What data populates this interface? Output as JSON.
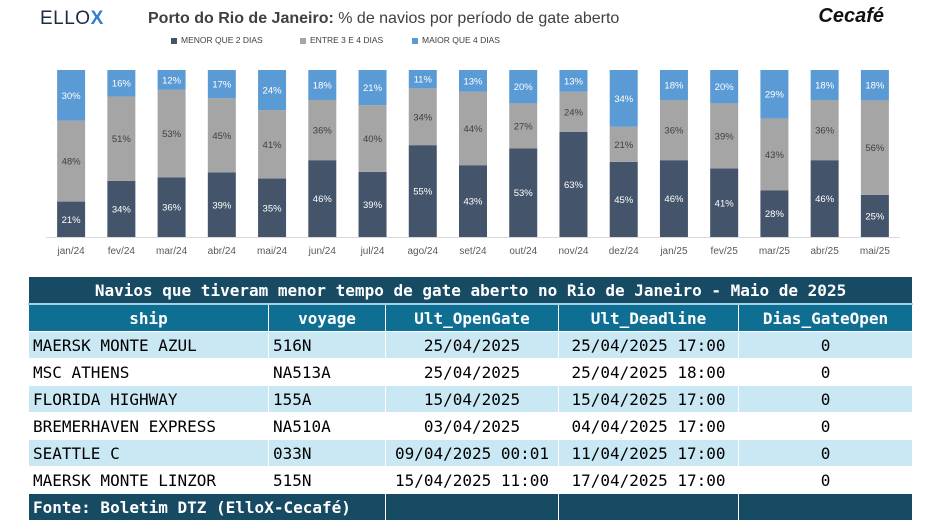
{
  "brand": {
    "left_logo_text": "ELLO",
    "left_logo_mark": "X",
    "right_logo_text": "Cecafé"
  },
  "chart_data": {
    "type": "bar",
    "stacked": true,
    "percent": true,
    "title_bold": "Porto do Rio de Janeiro:",
    "title_rest": " % de navios por período de gate aberto",
    "categories": [
      "jan/24",
      "fev/24",
      "mar/24",
      "abr/24",
      "mai/24",
      "jun/24",
      "jul/24",
      "ago/24",
      "set/24",
      "out/24",
      "nov/24",
      "dez/24",
      "jan/25",
      "fev/25",
      "mar/25",
      "abr/25",
      "mai/25"
    ],
    "series": [
      {
        "name": "MENOR QUE 2 DIAS",
        "color": "#44546a",
        "label_color": "#ffffff",
        "values": [
          21,
          34,
          36,
          39,
          35,
          46,
          39,
          55,
          43,
          53,
          63,
          45,
          46,
          41,
          28,
          46,
          25
        ]
      },
      {
        "name": "ENTRE 3 E 4 DIAS",
        "color": "#a5a5a5",
        "label_color": "#404040",
        "values": [
          48,
          51,
          53,
          45,
          41,
          36,
          40,
          34,
          44,
          27,
          24,
          21,
          36,
          39,
          43,
          36,
          56
        ]
      },
      {
        "name": "MAIOR QUE 4 DIAS",
        "color": "#5b9bd5",
        "label_color": "#ffffff",
        "values": [
          30,
          16,
          12,
          17,
          24,
          18,
          21,
          11,
          13,
          20,
          13,
          34,
          18,
          20,
          29,
          18,
          18
        ]
      }
    ],
    "legend_position": "top",
    "grid": false
  },
  "table": {
    "title": "Navios que tiveram menor tempo de gate aberto no Rio de Janeiro - Maio de 2025",
    "columns": [
      "ship",
      "voyage",
      "Ult_OpenGate",
      "Ult_Deadline",
      "Dias_GateOpen"
    ],
    "rows": [
      [
        "MAERSK MONTE AZUL",
        "516N",
        "25/04/2025",
        "25/04/2025 17:00",
        "0"
      ],
      [
        "MSC ATHENS",
        "NA513A",
        "25/04/2025",
        "25/04/2025 18:00",
        "0"
      ],
      [
        "FLORIDA HIGHWAY",
        "155A",
        "15/04/2025",
        "15/04/2025 17:00",
        "0"
      ],
      [
        "BREMERHAVEN EXPRESS",
        "NA510A",
        "03/04/2025",
        "04/04/2025 17:00",
        "0"
      ],
      [
        "SEATTLE C",
        "033N",
        "09/04/2025 00:01",
        "11/04/2025 17:00",
        "0"
      ],
      [
        "MAERSK MONTE LINZOR",
        "515N",
        "15/04/2025 11:00",
        "17/04/2025 17:00",
        "0"
      ]
    ],
    "footer": "Fonte: Boletim DTZ (ElloX-Cecafé)"
  }
}
